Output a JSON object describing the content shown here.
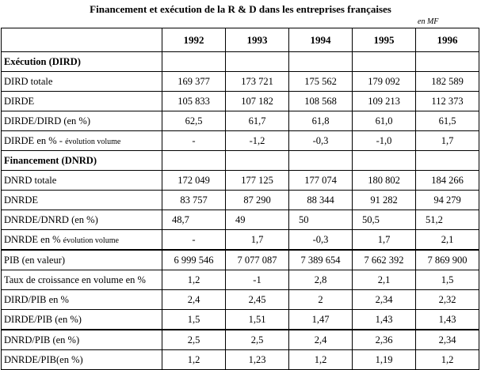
{
  "title": "Financement et exécution de la R & D dans les entreprises françaises",
  "unit": "en MF",
  "years": [
    "1992",
    "1993",
    "1994",
    "1995",
    "1996"
  ],
  "rows": [
    {
      "label": "Exécution (DIRD)",
      "section": true,
      "values": [
        "",
        "",
        "",
        "",
        ""
      ]
    },
    {
      "label": "DIRD totale",
      "values": [
        "169 377",
        "173 721",
        "175 562",
        "179 092",
        "182 589"
      ]
    },
    {
      "label": "DIRDE",
      "values": [
        "105 833",
        "107 182",
        "108 568",
        "109 213",
        "112 373"
      ]
    },
    {
      "label": "DIRDE/DIRD (en %)",
      "values": [
        "62,5",
        "61,7",
        "61,8",
        "61,0",
        "61,5"
      ]
    },
    {
      "label": "DIRDE en % - ",
      "label_small": "évolution volume",
      "values": [
        "-",
        "-1,2",
        "-0,3",
        "-1,0",
        "1,7"
      ]
    },
    {
      "label": "Financement (DNRD)",
      "section": true,
      "values": [
        "",
        "",
        "",
        "",
        ""
      ]
    },
    {
      "label": "DNRD totale",
      "values": [
        "172 049",
        "177 125",
        "177 074",
        "180 802",
        "184 266"
      ]
    },
    {
      "label": "DNRDE",
      "values": [
        "83 757",
        "87 290",
        "88 344",
        "91 282",
        "94 279"
      ]
    },
    {
      "label": "DNRDE/DNRD (en %)",
      "align_left": true,
      "values": [
        "48,7",
        "49",
        "50",
        "50,5",
        "51,2"
      ]
    },
    {
      "label": "DNRDE en % ",
      "label_small": "évolution volume",
      "values": [
        "-",
        "1,7",
        "-0,3",
        "1,7",
        "2,1"
      ]
    },
    {
      "label": "PIB (en valeur)",
      "thick": true,
      "values": [
        "6 999 546",
        "7 077 087",
        "7 389 654",
        "7 662 392",
        "7 869 900"
      ]
    },
    {
      "label": "Taux de croissance en volume en  %",
      "values": [
        "1,2",
        "-1",
        "2,8",
        "2,1",
        "1,5"
      ]
    },
    {
      "label": "DIRD/PIB en %",
      "values": [
        "2,4",
        "2,45",
        "2",
        "2,34",
        "2,32"
      ]
    },
    {
      "label": "DIRDE/PIB (en %)",
      "values": [
        "1,5",
        "1,51",
        "1,47",
        "1,43",
        "1,43"
      ]
    },
    {
      "label": "DNRD/PIB (en %)",
      "thick": true,
      "values": [
        "2,5",
        "2,5",
        "2,4",
        "2,36",
        "2,34"
      ]
    },
    {
      "label": "DNRDE/PIB(en %)",
      "values": [
        "1,2",
        "1,23",
        "1,2",
        "1,19",
        "1,2"
      ]
    }
  ]
}
